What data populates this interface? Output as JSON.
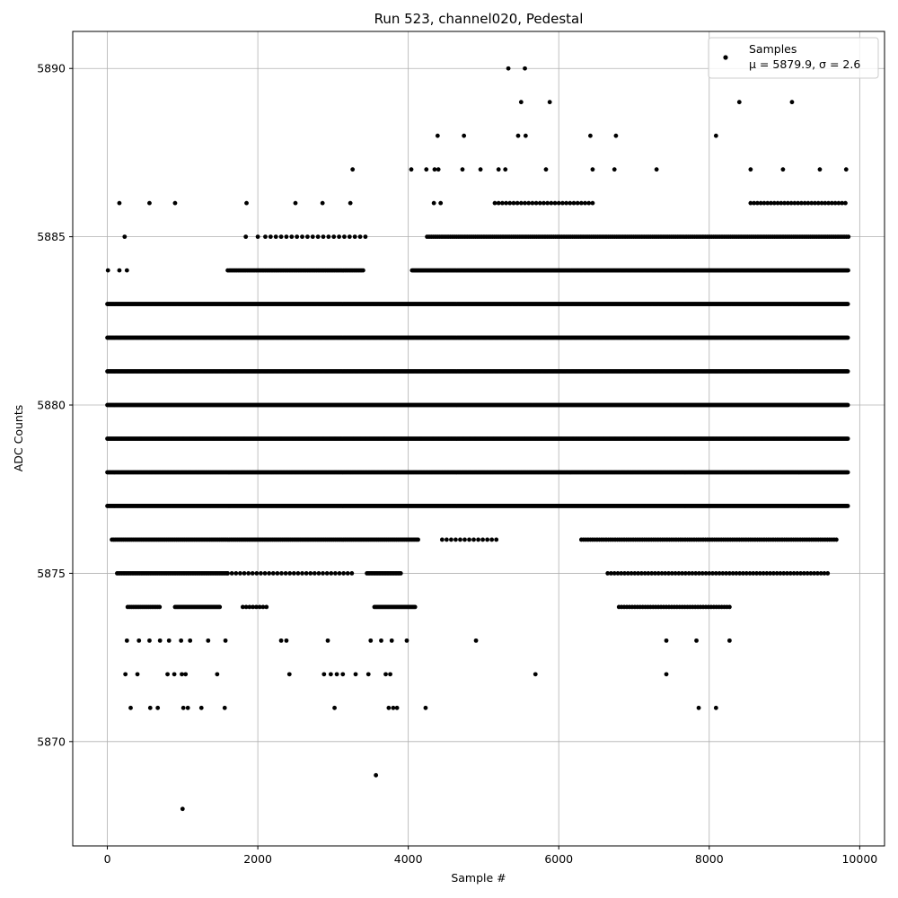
{
  "chart_data": {
    "type": "scatter",
    "title": "Run 523, channel020, Pedestal",
    "xlabel": "Sample #",
    "ylabel": "ADC Counts",
    "xlim": [
      -460,
      10330
    ],
    "ylim": [
      5866.9,
      5891.1
    ],
    "xticks": [
      0,
      2000,
      4000,
      6000,
      8000,
      10000
    ],
    "yticks": [
      5870,
      5875,
      5880,
      5885,
      5890
    ],
    "grid": true,
    "legend": {
      "placement": "top-right",
      "entries": [
        {
          "label": "Samples",
          "stats": "μ = 5879.9, σ = 2.6"
        }
      ]
    },
    "marker_color": "#000000",
    "series": [
      {
        "name": "Samples",
        "x_range": [
          0,
          9850
        ],
        "mean": 5879.9,
        "sigma": 2.6,
        "band_profile": [
          {
            "x": [
              0,
              9850
            ],
            "level": 5877
          },
          {
            "x": [
              0,
              9850
            ],
            "level": 5878
          },
          {
            "x": [
              0,
              9850
            ],
            "level": 5879
          },
          {
            "x": [
              0,
              9850
            ],
            "level": 5880
          },
          {
            "x": [
              0,
              9850
            ],
            "level": 5881
          },
          {
            "x": [
              0,
              9850
            ],
            "level": 5882
          },
          {
            "x": [
              0,
              9850
            ],
            "level": 5883
          }
        ],
        "points": [
          {
            "x": 1000,
            "y": 5868
          },
          {
            "x": 3570,
            "y": 5869
          },
          {
            "x": 310,
            "y": 5871
          },
          {
            "x": 570,
            "y": 5871
          },
          {
            "x": 670,
            "y": 5871
          },
          {
            "x": 1010,
            "y": 5871
          },
          {
            "x": 1070,
            "y": 5871
          },
          {
            "x": 1250,
            "y": 5871
          },
          {
            "x": 1560,
            "y": 5871
          },
          {
            "x": 3020,
            "y": 5871
          },
          {
            "x": 3740,
            "y": 5871
          },
          {
            "x": 3800,
            "y": 5871
          },
          {
            "x": 3850,
            "y": 5871
          },
          {
            "x": 4230,
            "y": 5871
          },
          {
            "x": 7860,
            "y": 5871
          },
          {
            "x": 8090,
            "y": 5871
          },
          {
            "x": 240,
            "y": 5872
          },
          {
            "x": 400,
            "y": 5872
          },
          {
            "x": 800,
            "y": 5872
          },
          {
            "x": 890,
            "y": 5872
          },
          {
            "x": 990,
            "y": 5872
          },
          {
            "x": 1040,
            "y": 5872
          },
          {
            "x": 1460,
            "y": 5872
          },
          {
            "x": 2420,
            "y": 5872
          },
          {
            "x": 2880,
            "y": 5872
          },
          {
            "x": 2970,
            "y": 5872
          },
          {
            "x": 3050,
            "y": 5872
          },
          {
            "x": 3130,
            "y": 5872
          },
          {
            "x": 3300,
            "y": 5872
          },
          {
            "x": 3470,
            "y": 5872
          },
          {
            "x": 3700,
            "y": 5872
          },
          {
            "x": 3760,
            "y": 5872
          },
          {
            "x": 5690,
            "y": 5872
          },
          {
            "x": 7430,
            "y": 5872
          },
          {
            "x": 260,
            "y": 5873
          },
          {
            "x": 420,
            "y": 5873
          },
          {
            "x": 560,
            "y": 5873
          },
          {
            "x": 700,
            "y": 5873
          },
          {
            "x": 820,
            "y": 5873
          },
          {
            "x": 980,
            "y": 5873
          },
          {
            "x": 1100,
            "y": 5873
          },
          {
            "x": 1340,
            "y": 5873
          },
          {
            "x": 1570,
            "y": 5873
          },
          {
            "x": 2310,
            "y": 5873
          },
          {
            "x": 2380,
            "y": 5873
          },
          {
            "x": 2930,
            "y": 5873
          },
          {
            "x": 3500,
            "y": 5873
          },
          {
            "x": 3640,
            "y": 5873
          },
          {
            "x": 3780,
            "y": 5873
          },
          {
            "x": 3980,
            "y": 5873
          },
          {
            "x": 4900,
            "y": 5873
          },
          {
            "x": 7430,
            "y": 5873
          },
          {
            "x": 7830,
            "y": 5873
          },
          {
            "x": 8270,
            "y": 5873
          },
          {
            "x": 8,
            "y": 5884
          },
          {
            "x": 160,
            "y": 5884
          },
          {
            "x": 260,
            "y": 5884
          },
          {
            "x": 160,
            "y": 5886
          },
          {
            "x": 560,
            "y": 5886
          },
          {
            "x": 900,
            "y": 5886
          },
          {
            "x": 1850,
            "y": 5886
          },
          {
            "x": 2500,
            "y": 5886
          },
          {
            "x": 2860,
            "y": 5886
          },
          {
            "x": 3230,
            "y": 5886
          },
          {
            "x": 4340,
            "y": 5886
          },
          {
            "x": 4430,
            "y": 5886
          },
          {
            "x": 230,
            "y": 5885
          },
          {
            "x": 1840,
            "y": 5885
          },
          {
            "x": 2000,
            "y": 5885
          },
          {
            "x": 3260,
            "y": 5887
          },
          {
            "x": 4040,
            "y": 5887
          },
          {
            "x": 4240,
            "y": 5887
          },
          {
            "x": 4350,
            "y": 5887
          },
          {
            "x": 4400,
            "y": 5887
          },
          {
            "x": 4720,
            "y": 5887
          },
          {
            "x": 4960,
            "y": 5887
          },
          {
            "x": 5200,
            "y": 5887
          },
          {
            "x": 5290,
            "y": 5887
          },
          {
            "x": 5830,
            "y": 5887
          },
          {
            "x": 6450,
            "y": 5887
          },
          {
            "x": 6740,
            "y": 5887
          },
          {
            "x": 7300,
            "y": 5887
          },
          {
            "x": 8550,
            "y": 5887
          },
          {
            "x": 8980,
            "y": 5887
          },
          {
            "x": 9470,
            "y": 5887
          },
          {
            "x": 9820,
            "y": 5887
          },
          {
            "x": 4390,
            "y": 5888
          },
          {
            "x": 4740,
            "y": 5888
          },
          {
            "x": 5460,
            "y": 5888
          },
          {
            "x": 5560,
            "y": 5888
          },
          {
            "x": 6420,
            "y": 5888
          },
          {
            "x": 6760,
            "y": 5888
          },
          {
            "x": 8090,
            "y": 5888
          },
          {
            "x": 5500,
            "y": 5889
          },
          {
            "x": 5880,
            "y": 5889
          },
          {
            "x": 8400,
            "y": 5889
          },
          {
            "x": 9100,
            "y": 5889
          },
          {
            "x": 5330,
            "y": 5890
          },
          {
            "x": 5550,
            "y": 5890
          }
        ]
      }
    ]
  }
}
